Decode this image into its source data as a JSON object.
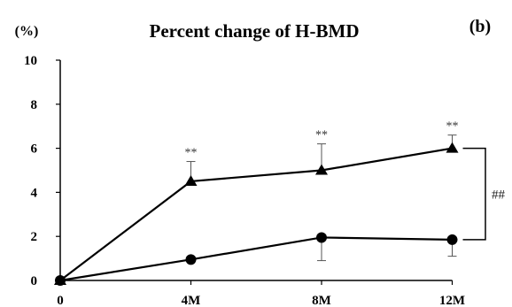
{
  "chart_data": {
    "type": "line",
    "title": "Percent change of H-BMD",
    "unit_label": "(%)",
    "panel_label": "(b)",
    "xlabel": "",
    "ylabel": "",
    "categories": [
      "0",
      "4M",
      "8M",
      "12M"
    ],
    "ylim": [
      0,
      10
    ],
    "yticks": [
      "0",
      "2",
      "4",
      "6",
      "8",
      "10"
    ],
    "grid": false,
    "series": [
      {
        "marker": "triangle",
        "values": [
          0,
          4.5,
          5.0,
          6.0
        ],
        "error_upper": [
          0,
          0.9,
          1.2,
          0.6
        ],
        "annotations": [
          "",
          "**",
          "**",
          "**"
        ]
      },
      {
        "marker": "circle",
        "values": [
          0,
          0.95,
          1.95,
          1.85
        ],
        "error_lower": [
          0,
          0,
          1.05,
          0.75
        ]
      }
    ],
    "bracket_label": "##"
  }
}
